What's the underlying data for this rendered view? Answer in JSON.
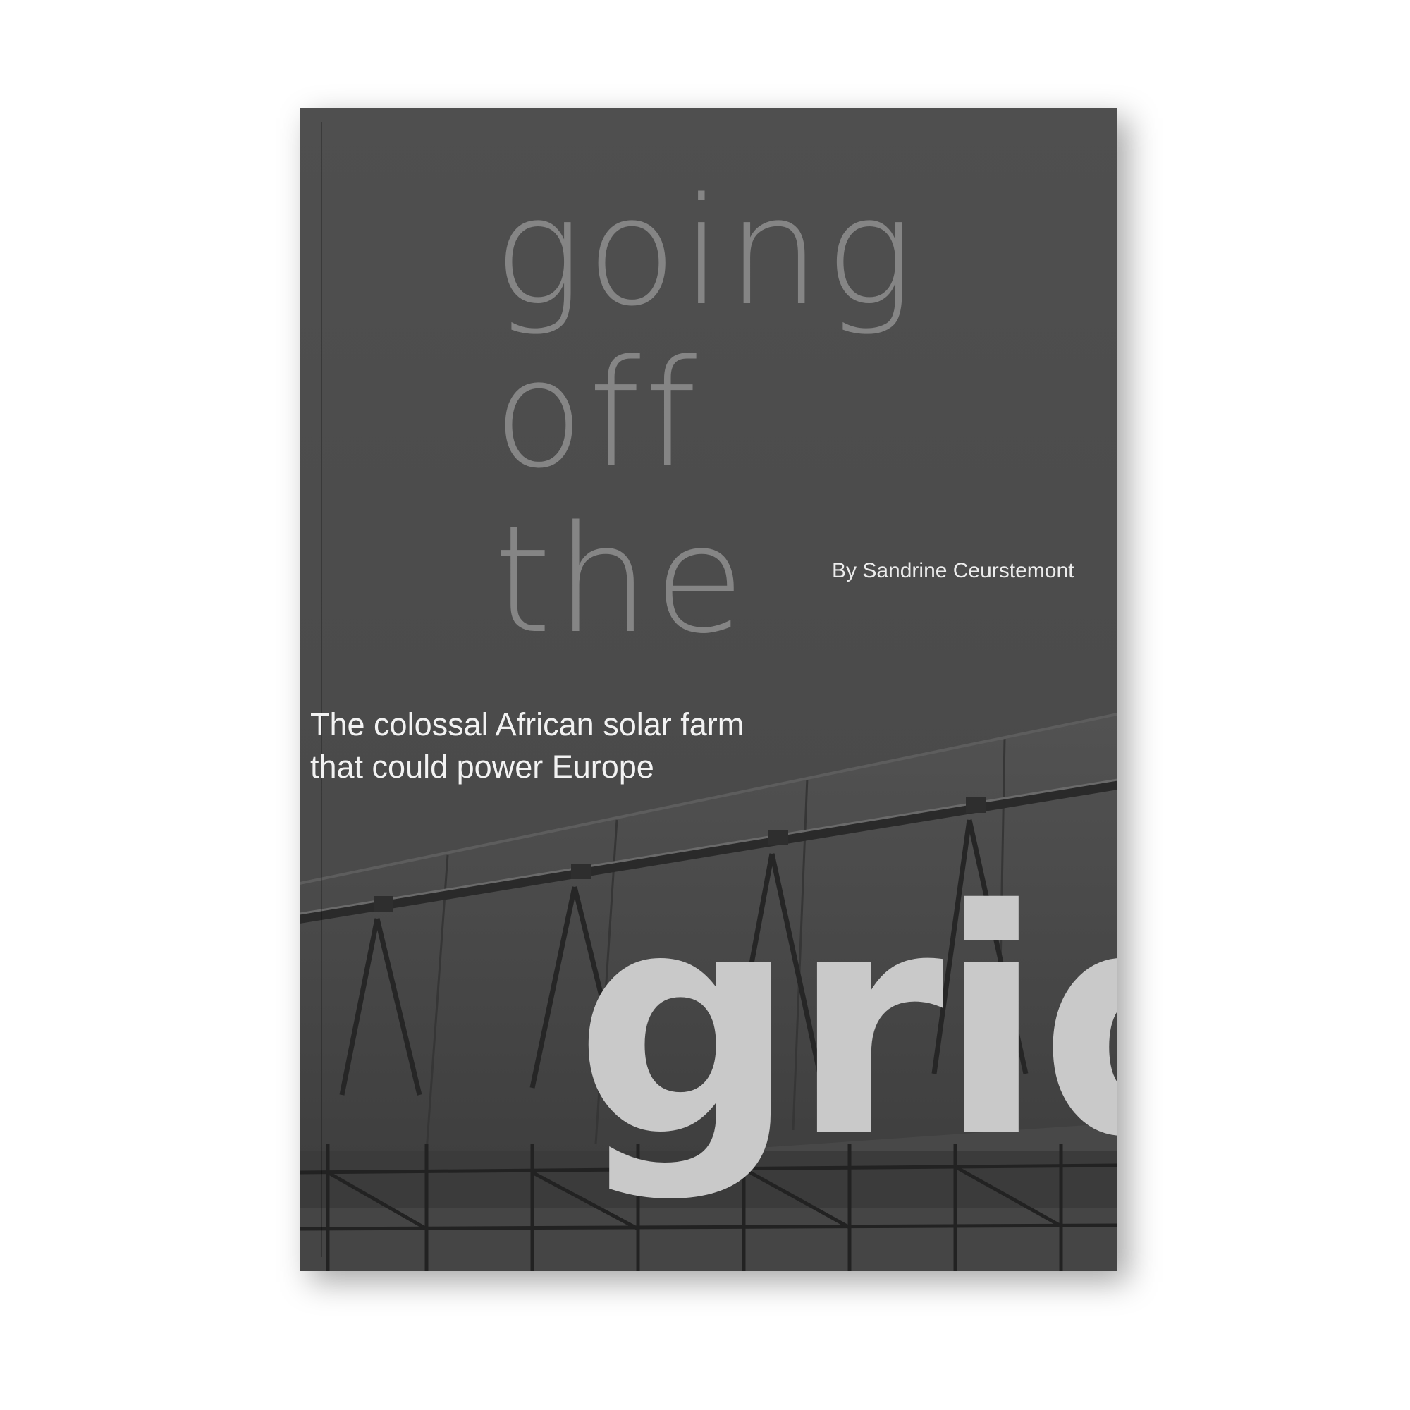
{
  "cover": {
    "title_lines": [
      "going",
      "off",
      "the"
    ],
    "title_emphasis": "grid",
    "author": "By Sandrine Ceurstemont",
    "subtitle_lines": [
      "The colossal African solar farm",
      "that could power Europe"
    ]
  },
  "colors": {
    "cover_background": "#4d4d4d",
    "title_light": "#858585",
    "title_emphasis": "#c9c9c9",
    "text_white": "#f2f2f2"
  }
}
